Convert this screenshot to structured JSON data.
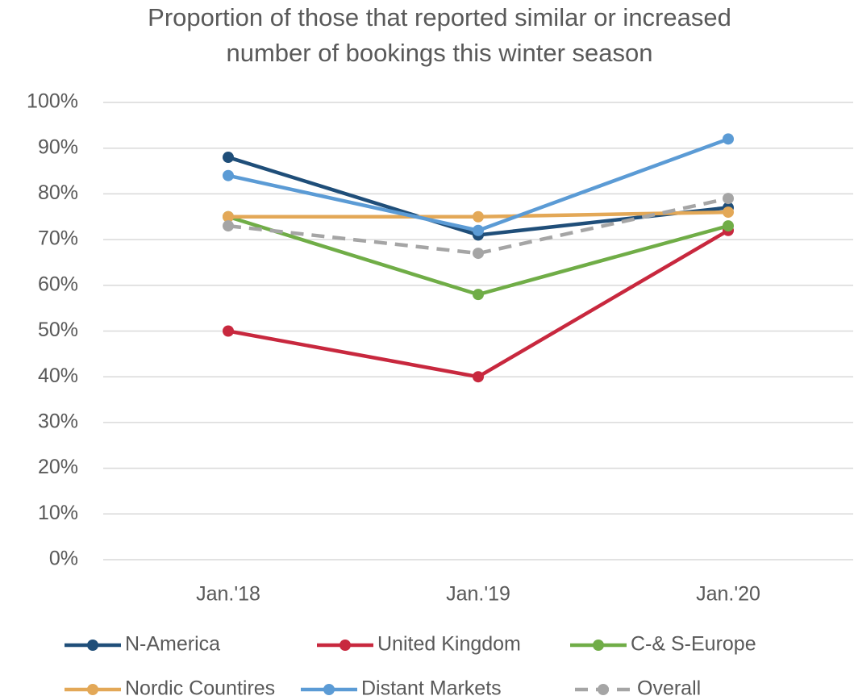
{
  "chart_data": {
    "type": "line",
    "title": [
      "Proportion of those that reported similar or increased",
      "number of bookings this winter season"
    ],
    "categories": [
      "Jan.'18",
      "Jan.'19",
      "Jan.'20"
    ],
    "series": [
      {
        "name": "N-America",
        "color": "#1f4e79",
        "values": [
          88,
          71,
          77
        ]
      },
      {
        "name": "United Kingdom",
        "color": "#c8283e",
        "values": [
          50,
          40,
          72
        ]
      },
      {
        "name": "C-& S-Europe",
        "color": "#70ad47",
        "values": [
          75,
          58,
          73
        ]
      },
      {
        "name": "Nordic Countires",
        "color": "#e3a857",
        "values": [
          75,
          75,
          76
        ]
      },
      {
        "name": "Distant Markets",
        "color": "#5b9bd5",
        "values": [
          84,
          72,
          92
        ]
      },
      {
        "name": "Overall",
        "color": "#a5a5a5",
        "dashed": true,
        "values": [
          73,
          67,
          79
        ]
      }
    ],
    "ylim": [
      0,
      100
    ],
    "yticks": [
      {
        "value": 0,
        "label": "0%"
      },
      {
        "value": 10,
        "label": "10%"
      },
      {
        "value": 20,
        "label": "20%"
      },
      {
        "value": 30,
        "label": "30%"
      },
      {
        "value": 40,
        "label": "40%"
      },
      {
        "value": 50,
        "label": "50%"
      },
      {
        "value": 60,
        "label": "60%"
      },
      {
        "value": 70,
        "label": "70%"
      },
      {
        "value": 80,
        "label": "80%"
      },
      {
        "value": 90,
        "label": "90%"
      },
      {
        "value": 100,
        "label": "100%"
      }
    ],
    "grid": true
  }
}
